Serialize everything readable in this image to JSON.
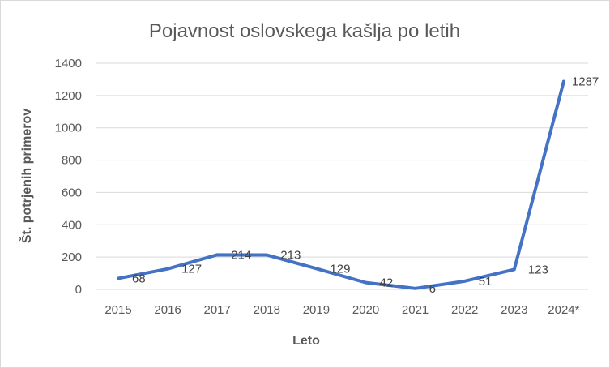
{
  "chart_data": {
    "type": "line",
    "title": "Pojavnost oslovskega kašlja po letih",
    "xlabel": "Leto",
    "ylabel": "Št. potrjenih primerov",
    "categories": [
      "2015",
      "2016",
      "2017",
      "2018",
      "2019",
      "2020",
      "2021",
      "2022",
      "2023",
      "2024*"
    ],
    "series": [
      {
        "name": "Št. potrjenih primerov",
        "values": [
          68,
          127,
          214,
          213,
          129,
          42,
          6,
          51,
          123,
          1287
        ],
        "color": "#4472C4"
      }
    ],
    "data_labels": [
      "68",
      "127",
      "214",
      "213",
      "129",
      "42",
      "6",
      "51",
      "123",
      "1287"
    ],
    "ylim": [
      0,
      1400
    ],
    "yticks": [
      "0",
      "200",
      "400",
      "600",
      "800",
      "1000",
      "1200",
      "1400"
    ],
    "grid": true,
    "legend": "none"
  }
}
